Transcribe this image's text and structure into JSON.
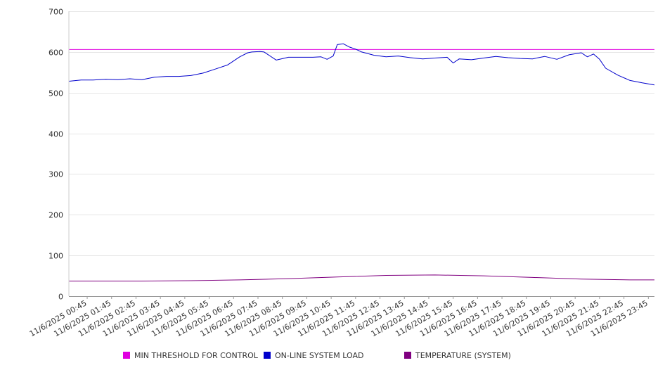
{
  "chart_data": {
    "type": "line",
    "ylim": [
      0,
      700
    ],
    "yticks": [
      0,
      100,
      200,
      300,
      400,
      500,
      600,
      700
    ],
    "xticks": [
      "11/6/2025 00:45",
      "11/6/2025 01:45",
      "11/6/2025 02:45",
      "11/6/2025 03:45",
      "11/6/2025 04:45",
      "11/6/2025 05:45",
      "11/6/2025 06:45",
      "11/6/2025 07:45",
      "11/6/2025 08:45",
      "11/6/2025 09:45",
      "11/6/2025 10:45",
      "11/6/2025 11:45",
      "11/6/2025 12:45",
      "11/6/2025 13:45",
      "11/6/2025 14:45",
      "11/6/2025 15:45",
      "11/6/2025 16:45",
      "11/6/2025 17:45",
      "11/6/2025 18:45",
      "11/6/2025 19:45",
      "11/6/2025 20:45",
      "11/6/2025 21:45",
      "11/6/2025 22:45",
      "11/6/2025 23:45"
    ],
    "grid": "horizontal",
    "legend_position": "bottom",
    "series": [
      {
        "name": "MIN THRESHOLD FOR CONTROL",
        "color": "#e000e0",
        "x": [
          "11/6/2025 00:00",
          "11/7/2025 00:00"
        ],
        "y": [
          606,
          606
        ]
      },
      {
        "name": "ON-LINE SYSTEM LOAD",
        "color": "#0000cc",
        "x": [
          "11/6/2025 00:00",
          "11/6/2025 00:30",
          "11/6/2025 01:00",
          "11/6/2025 01:30",
          "11/6/2025 02:00",
          "11/6/2025 02:30",
          "11/6/2025 03:00",
          "11/6/2025 03:30",
          "11/6/2025 04:00",
          "11/6/2025 04:30",
          "11/6/2025 05:00",
          "11/6/2025 05:30",
          "11/6/2025 06:00",
          "11/6/2025 06:30",
          "11/6/2025 07:00",
          "11/6/2025 07:20",
          "11/6/2025 07:30",
          "11/6/2025 07:50",
          "11/6/2025 08:00",
          "11/6/2025 08:30",
          "11/6/2025 09:00",
          "11/6/2025 09:30",
          "11/6/2025 10:00",
          "11/6/2025 10:20",
          "11/6/2025 10:35",
          "11/6/2025 10:50",
          "11/6/2025 11:00",
          "11/6/2025 11:15",
          "11/6/2025 11:30",
          "11/6/2025 11:45",
          "11/6/2025 12:00",
          "11/6/2025 12:30",
          "11/6/2025 13:00",
          "11/6/2025 13:30",
          "11/6/2025 14:00",
          "11/6/2025 14:30",
          "11/6/2025 15:00",
          "11/6/2025 15:30",
          "11/6/2025 15:45",
          "11/6/2025 16:00",
          "11/6/2025 16:30",
          "11/6/2025 17:00",
          "11/6/2025 17:30",
          "11/6/2025 18:00",
          "11/6/2025 18:30",
          "11/6/2025 19:00",
          "11/6/2025 19:30",
          "11/6/2025 20:00",
          "11/6/2025 20:30",
          "11/6/2025 21:00",
          "11/6/2025 21:15",
          "11/6/2025 21:30",
          "11/6/2025 21:45",
          "11/6/2025 22:00",
          "11/6/2025 22:30",
          "11/6/2025 23:00",
          "11/6/2025 23:30",
          "11/7/2025 00:00"
        ],
        "y": [
          528,
          531,
          531,
          533,
          532,
          534,
          532,
          538,
          540,
          540,
          542,
          548,
          558,
          568,
          588,
          598,
          600,
          601,
          600,
          580,
          587,
          587,
          587,
          588,
          582,
          590,
          618,
          620,
          612,
          607,
          600,
          592,
          588,
          590,
          586,
          583,
          585,
          587,
          573,
          583,
          581,
          585,
          589,
          586,
          584,
          583,
          589,
          582,
          593,
          598,
          588,
          595,
          582,
          560,
          543,
          530,
          524,
          519
        ]
      },
      {
        "name": "TEMPERATURE (SYSTEM)",
        "color": "#800080",
        "x": [
          "11/6/2025 00:00",
          "11/6/2025 03:00",
          "11/6/2025 05:00",
          "11/6/2025 07:00",
          "11/6/2025 09:00",
          "11/6/2025 11:00",
          "11/6/2025 13:00",
          "11/6/2025 15:00",
          "11/6/2025 17:00",
          "11/6/2025 19:00",
          "11/6/2025 21:00",
          "11/6/2025 23:00",
          "11/7/2025 00:00"
        ],
        "y": [
          37,
          37,
          38,
          40,
          43,
          47,
          51,
          52,
          50,
          46,
          42,
          40,
          40
        ]
      }
    ]
  }
}
